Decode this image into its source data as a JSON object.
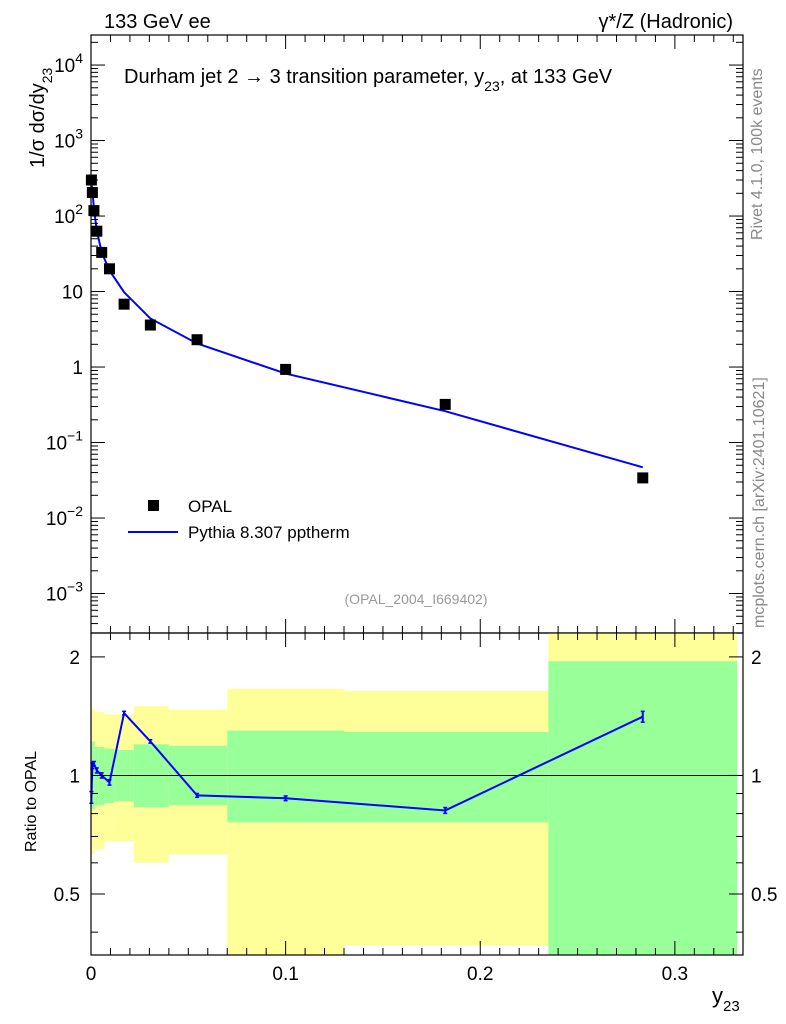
{
  "header": {
    "left": "133 GeV ee",
    "right": "γ*/Z (Hadronic)"
  },
  "side_text": {
    "top": "Rivet 4.1.0,  100k events",
    "bottom": "mcplots.cern.ch [arXiv:2401.10621]"
  },
  "chart_data": [
    {
      "type": "line",
      "title": "Durham jet 2 → 3 transition parameter, y23, at 133 GeV",
      "title_parts": {
        "main": "Durham jet 2 →  3 transition parameter, y",
        "sub": "23",
        "tail": ", at 133 GeV"
      },
      "ylabel": "1/σ  dσ/dy23",
      "ylabel_parts": {
        "main": "1/σ  dσ/dy",
        "sub": "23"
      },
      "yscale": "log",
      "xlim": [
        0,
        0.335
      ],
      "ylim": [
        0.0003,
        25000
      ],
      "ytick_labels": [
        {
          "v": 0.001,
          "base": "10",
          "exp": "−3"
        },
        {
          "v": 0.01,
          "base": "10",
          "exp": "−2"
        },
        {
          "v": 0.1,
          "base": "10",
          "exp": "−1"
        },
        {
          "v": 1,
          "base": "1",
          "exp": ""
        },
        {
          "v": 10,
          "base": "10",
          "exp": ""
        },
        {
          "v": 100,
          "base": "10",
          "exp": "2"
        },
        {
          "v": 1000,
          "base": "10",
          "exp": "3"
        },
        {
          "v": 10000,
          "base": "10",
          "exp": "4"
        }
      ],
      "watermark": "(OPAL_2004_I669402)",
      "legend": {
        "position": "bottom-left",
        "entries": [
          "OPAL",
          "Pythia 8.307 pptherm"
        ]
      },
      "series": [
        {
          "name": "OPAL",
          "marker": "square",
          "color": "#000000",
          "points": [
            {
              "x": 0.0002,
              "y": 300
            },
            {
              "x": 0.0007,
              "y": 205
            },
            {
              "x": 0.0015,
              "y": 118
            },
            {
              "x": 0.003,
              "y": 63
            },
            {
              "x": 0.0055,
              "y": 33
            },
            {
              "x": 0.0095,
              "y": 20
            },
            {
              "x": 0.017,
              "y": 6.8
            },
            {
              "x": 0.0305,
              "y": 3.6
            },
            {
              "x": 0.0545,
              "y": 2.3
            },
            {
              "x": 0.1,
              "y": 0.93
            },
            {
              "x": 0.182,
              "y": 0.32
            },
            {
              "x": 0.2835,
              "y": 0.034
            }
          ]
        },
        {
          "name": "Pythia 8.307 pptherm",
          "marker": "line",
          "color": "#0000ff",
          "points": [
            {
              "x": 0.0002,
              "y": 270
            },
            {
              "x": 0.0007,
              "y": 220
            },
            {
              "x": 0.0015,
              "y": 126
            },
            {
              "x": 0.003,
              "y": 64
            },
            {
              "x": 0.0055,
              "y": 33
            },
            {
              "x": 0.0095,
              "y": 19
            },
            {
              "x": 0.017,
              "y": 9.8
            },
            {
              "x": 0.0305,
              "y": 4.4
            },
            {
              "x": 0.0545,
              "y": 2.05
            },
            {
              "x": 0.1,
              "y": 0.82
            },
            {
              "x": 0.182,
              "y": 0.26
            },
            {
              "x": 0.2835,
              "y": 0.047
            }
          ]
        }
      ]
    },
    {
      "type": "line",
      "title": "",
      "xlabel": "y23",
      "xlabel_parts": {
        "main": "y",
        "sub": "23"
      },
      "ylabel": "Ratio to OPAL",
      "yscale": "log",
      "xlim": [
        0,
        0.335
      ],
      "ylim": [
        0.35,
        2.3
      ],
      "xtick_labels": [
        {
          "v": 0,
          "label": "0"
        },
        {
          "v": 0.1,
          "label": "0.1"
        },
        {
          "v": 0.2,
          "label": "0.2"
        },
        {
          "v": 0.3,
          "label": "0.3"
        }
      ],
      "ytick_labels": [
        {
          "v": 0.5,
          "label": "0.5"
        },
        {
          "v": 1,
          "label": "1"
        },
        {
          "v": 2,
          "label": "2"
        }
      ],
      "bands": [
        {
          "x0": 0,
          "x1": 0.001,
          "y2_lo": 0.63,
          "y2_hi": 1.48,
          "y1_lo": 0.82,
          "y1_hi": 1.22
        },
        {
          "x0": 0.001,
          "x1": 0.002,
          "y2_lo": 0.63,
          "y2_hi": 1.48,
          "y1_lo": 0.82,
          "y1_hi": 1.22
        },
        {
          "x0": 0.002,
          "x1": 0.004,
          "y2_lo": 0.65,
          "y2_hi": 1.45,
          "y1_lo": 0.84,
          "y1_hi": 1.18
        },
        {
          "x0": 0.004,
          "x1": 0.007,
          "y2_lo": 0.65,
          "y2_hi": 1.45,
          "y1_lo": 0.84,
          "y1_hi": 1.18
        },
        {
          "x0": 0.007,
          "x1": 0.012,
          "y2_lo": 0.68,
          "y2_hi": 1.43,
          "y1_lo": 0.85,
          "y1_hi": 1.17
        },
        {
          "x0": 0.012,
          "x1": 0.022,
          "y2_lo": 0.68,
          "y2_hi": 1.43,
          "y1_lo": 0.86,
          "y1_hi": 1.16
        },
        {
          "x0": 0.022,
          "x1": 0.04,
          "y2_lo": 0.6,
          "y2_hi": 1.5,
          "y1_lo": 0.83,
          "y1_hi": 1.2
        },
        {
          "x0": 0.04,
          "x1": 0.07,
          "y2_lo": 0.63,
          "y2_hi": 1.47,
          "y1_lo": 0.84,
          "y1_hi": 1.19
        },
        {
          "x0": 0.07,
          "x1": 0.13,
          "y2_lo": 0.35,
          "y2_hi": 1.66,
          "y1_lo": 0.76,
          "y1_hi": 1.3
        },
        {
          "x0": 0.13,
          "x1": 0.235,
          "y2_lo": 0.37,
          "y2_hi": 1.64,
          "y1_lo": 0.76,
          "y1_hi": 1.29
        },
        {
          "x0": 0.235,
          "x1": 0.332,
          "y2_lo": 0.35,
          "y2_hi": 2.3,
          "y1_lo": 0.35,
          "y1_hi": 1.95
        }
      ],
      "series": [
        {
          "name": "Pythia 8.307 pptherm / OPAL",
          "color": "#0000ff",
          "points": [
            {
              "x": 0.0002,
              "y": 0.88,
              "err": 0.03
            },
            {
              "x": 0.0007,
              "y": 1.06,
              "err": 0.02
            },
            {
              "x": 0.0015,
              "y": 1.07,
              "err": 0.015
            },
            {
              "x": 0.003,
              "y": 1.03,
              "err": 0.015
            },
            {
              "x": 0.0055,
              "y": 1.0,
              "err": 0.015
            },
            {
              "x": 0.0095,
              "y": 0.96,
              "err": 0.015
            },
            {
              "x": 0.017,
              "y": 1.44,
              "err": 0.015
            },
            {
              "x": 0.0305,
              "y": 1.22,
              "err": 0.012
            },
            {
              "x": 0.0545,
              "y": 0.89,
              "err": 0.01
            },
            {
              "x": 0.1,
              "y": 0.875,
              "err": 0.012
            },
            {
              "x": 0.182,
              "y": 0.815,
              "err": 0.014
            },
            {
              "x": 0.2835,
              "y": 1.41,
              "err": 0.045
            }
          ]
        }
      ],
      "reference_line": 1
    }
  ]
}
